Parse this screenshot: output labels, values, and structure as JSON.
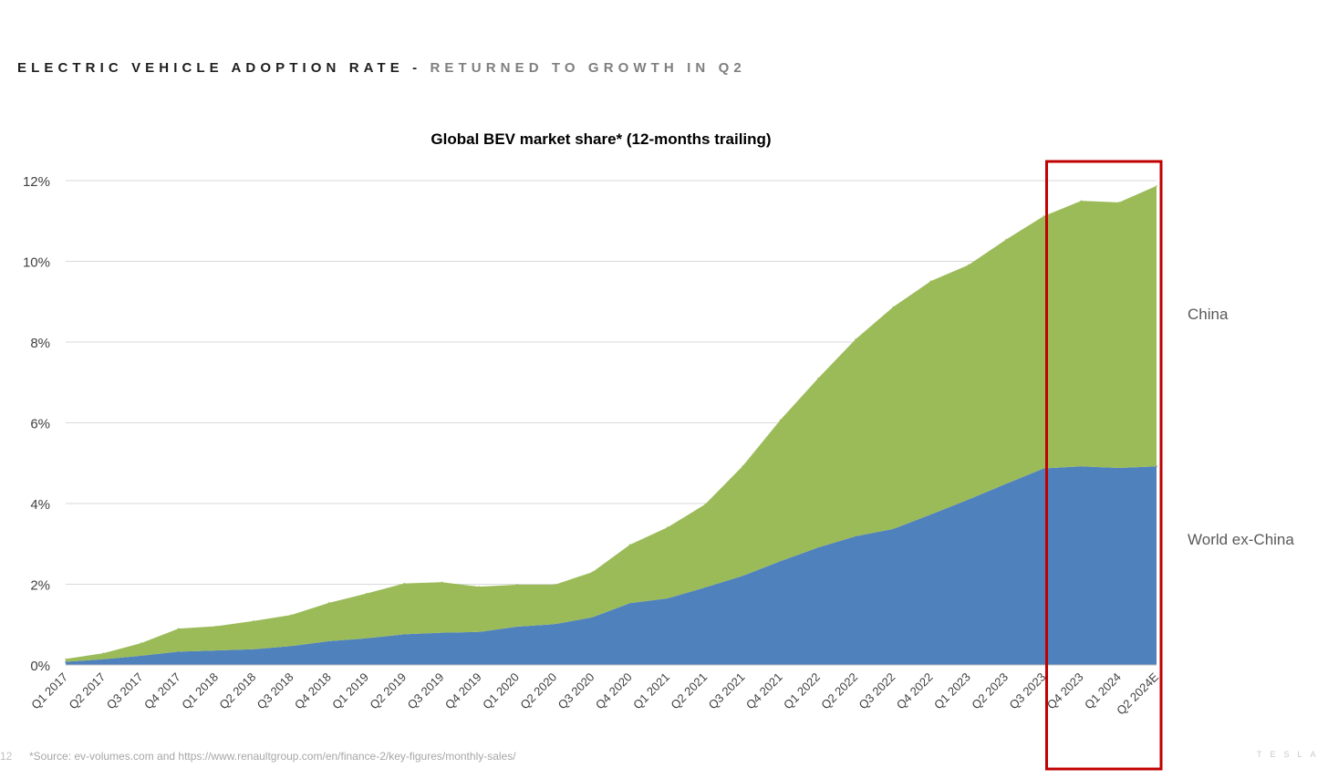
{
  "slide": {
    "title_main": "ELECTRIC VEHICLE ADOPTION RATE -",
    "title_sub": "RETURNED TO GROWTH IN Q2",
    "footnote": "*Source: ev-volumes.com and https://www.renaultgroup.com/en/finance-2/key-figures/monthly-sales/",
    "page_number": "12",
    "brand": "TESLA"
  },
  "chart_data": {
    "type": "area",
    "stacked": true,
    "title": "Global BEV market share* (12-months trailing)",
    "categories": [
      "Q1 2017",
      "Q2 2017",
      "Q3 2017",
      "Q4 2017",
      "Q1 2018",
      "Q2 2018",
      "Q3 2018",
      "Q4 2018",
      "Q1 2019",
      "Q2 2019",
      "Q3 2019",
      "Q4 2019",
      "Q1 2020",
      "Q2 2020",
      "Q3 2020",
      "Q4 2020",
      "Q1 2021",
      "Q2 2021",
      "Q3 2021",
      "Q4 2021",
      "Q1 2022",
      "Q2 2022",
      "Q3 2022",
      "Q4 2022",
      "Q1 2023",
      "Q2 2023",
      "Q3 2023",
      "Q4 2023",
      "Q1 2024",
      "Q2 2024E"
    ],
    "series": [
      {
        "name": "World ex-China",
        "color": "#4f81bd",
        "values": [
          0.08,
          0.14,
          0.23,
          0.33,
          0.36,
          0.39,
          0.47,
          0.59,
          0.66,
          0.76,
          0.8,
          0.82,
          0.95,
          1.01,
          1.18,
          1.53,
          1.65,
          1.92,
          2.21,
          2.57,
          2.91,
          3.19,
          3.37,
          3.73,
          4.1,
          4.49,
          4.87,
          4.92,
          4.88,
          4.92
        ]
      },
      {
        "name": "China",
        "color": "#9bbb59",
        "values": [
          0.07,
          0.15,
          0.31,
          0.57,
          0.6,
          0.7,
          0.77,
          0.95,
          1.11,
          1.26,
          1.25,
          1.12,
          1.04,
          0.98,
          1.12,
          1.45,
          1.76,
          2.06,
          2.72,
          3.5,
          4.19,
          4.88,
          5.5,
          5.78,
          5.81,
          6.05,
          6.25,
          6.58,
          6.58,
          6.95
        ]
      }
    ],
    "ylim": [
      0,
      12
    ],
    "yticks": [
      0,
      2,
      4,
      6,
      8,
      10,
      12
    ],
    "ytick_labels": [
      "0%",
      "2%",
      "4%",
      "6%",
      "8%",
      "10%",
      "12%"
    ],
    "grid": true,
    "legend": "right, direct labels",
    "highlight": {
      "from": "Q4 2023",
      "to": "Q2 2024E",
      "color": "#c00000"
    }
  }
}
